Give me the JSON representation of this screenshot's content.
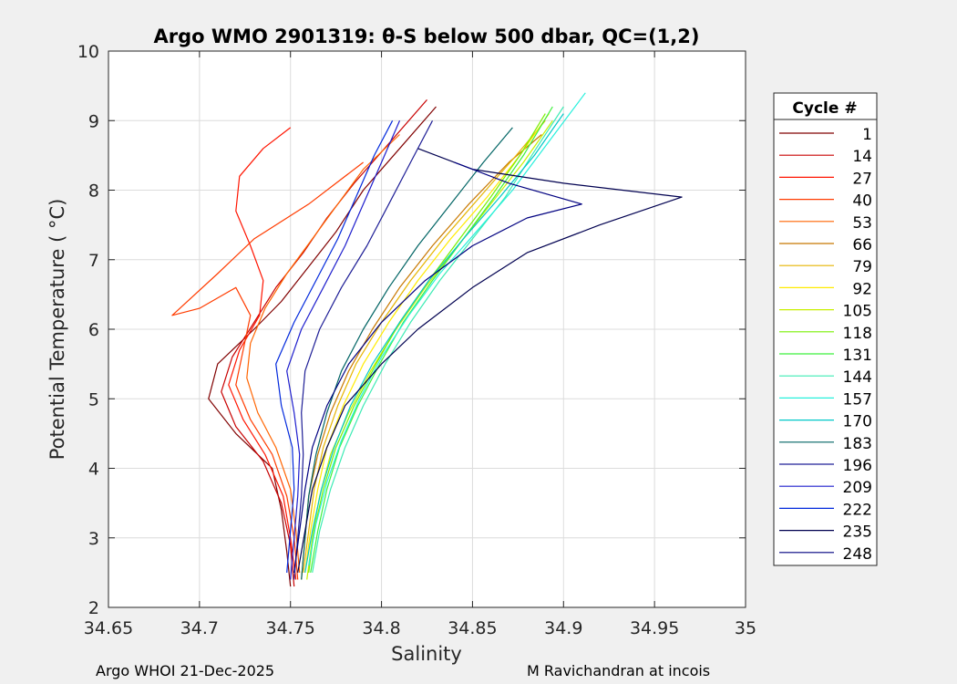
{
  "chart_data": {
    "type": "line",
    "title": "Argo WMO 2901319: θ-S below 500 dbar,  QC=(1,2)",
    "xlabel": "Salinity",
    "ylabel": "Potential Temperature ( °C)",
    "xlim": [
      34.65,
      35
    ],
    "ylim": [
      2,
      10
    ],
    "xticks": [
      "34.65",
      "34.7",
      "34.75",
      "34.8",
      "34.85",
      "34.9",
      "34.95",
      "35"
    ],
    "yticks": [
      "2",
      "3",
      "4",
      "5",
      "6",
      "7",
      "8",
      "9",
      "10"
    ],
    "grid": true,
    "legend": {
      "title": "Cycle #",
      "position": "outside-right",
      "entries": [
        "1",
        "14",
        "27",
        "40",
        "53",
        "66",
        "79",
        "92",
        "105",
        "118",
        "131",
        "144",
        "157",
        "170",
        "183",
        "196",
        "209",
        "222",
        "235",
        "248"
      ],
      "colors": [
        "#800000",
        "#c80000",
        "#ff1400",
        "#ff3c00",
        "#ff6400",
        "#c87800",
        "#e6b400",
        "#ffeb00",
        "#c8f000",
        "#78f000",
        "#3cf03c",
        "#3cebb4",
        "#28f0dc",
        "#00c8c8",
        "#006464",
        "#1e1e96",
        "#1e1ecd",
        "#0028dc",
        "#000050",
        "#000080"
      ]
    },
    "series": [
      {
        "name": "1",
        "color": "#800000",
        "points": [
          [
            34.75,
            2.3
          ],
          [
            34.748,
            2.8
          ],
          [
            34.745,
            3.4
          ],
          [
            34.74,
            4.0
          ],
          [
            34.72,
            4.5
          ],
          [
            34.705,
            5.0
          ],
          [
            34.71,
            5.5
          ],
          [
            34.73,
            6.0
          ],
          [
            34.745,
            6.4
          ],
          [
            34.76,
            6.9
          ],
          [
            34.775,
            7.4
          ],
          [
            34.79,
            8.0
          ],
          [
            34.81,
            8.6
          ],
          [
            34.83,
            9.2
          ]
        ]
      },
      {
        "name": "14",
        "color": "#c80000",
        "points": [
          [
            34.752,
            2.3
          ],
          [
            34.75,
            2.9
          ],
          [
            34.745,
            3.5
          ],
          [
            34.735,
            4.1
          ],
          [
            34.72,
            4.6
          ],
          [
            34.712,
            5.1
          ],
          [
            34.718,
            5.6
          ],
          [
            34.73,
            6.1
          ],
          [
            34.742,
            6.6
          ],
          [
            34.757,
            7.1
          ],
          [
            34.77,
            7.6
          ],
          [
            34.785,
            8.1
          ],
          [
            34.805,
            8.7
          ],
          [
            34.825,
            9.3
          ]
        ]
      },
      {
        "name": "27",
        "color": "#ff1400",
        "points": [
          [
            34.753,
            2.4
          ],
          [
            34.75,
            3.0
          ],
          [
            34.746,
            3.6
          ],
          [
            34.736,
            4.2
          ],
          [
            34.724,
            4.7
          ],
          [
            34.716,
            5.2
          ],
          [
            34.722,
            5.7
          ],
          [
            34.733,
            6.2
          ],
          [
            34.735,
            6.7
          ],
          [
            34.728,
            7.2
          ],
          [
            34.72,
            7.7
          ],
          [
            34.722,
            8.2
          ],
          [
            34.735,
            8.6
          ],
          [
            34.75,
            8.9
          ]
        ]
      },
      {
        "name": "40",
        "color": "#ff3c00",
        "points": [
          [
            34.754,
            2.4
          ],
          [
            34.752,
            3.0
          ],
          [
            34.748,
            3.6
          ],
          [
            34.74,
            4.2
          ],
          [
            34.728,
            4.7
          ],
          [
            34.72,
            5.2
          ],
          [
            34.724,
            5.7
          ],
          [
            34.728,
            6.2
          ],
          [
            34.72,
            6.6
          ],
          [
            34.7,
            6.3
          ],
          [
            34.685,
            6.2
          ],
          [
            34.71,
            6.8
          ],
          [
            34.73,
            7.3
          ],
          [
            34.76,
            7.8
          ],
          [
            34.79,
            8.4
          ]
        ]
      },
      {
        "name": "53",
        "color": "#ff6400",
        "points": [
          [
            34.755,
            2.5
          ],
          [
            34.753,
            3.1
          ],
          [
            34.75,
            3.7
          ],
          [
            34.742,
            4.3
          ],
          [
            34.732,
            4.8
          ],
          [
            34.726,
            5.3
          ],
          [
            34.728,
            5.8
          ],
          [
            34.736,
            6.3
          ],
          [
            34.748,
            6.8
          ],
          [
            34.762,
            7.3
          ],
          [
            34.776,
            7.8
          ],
          [
            34.79,
            8.3
          ],
          [
            34.81,
            8.8
          ]
        ]
      },
      {
        "name": "66",
        "color": "#c87800",
        "points": [
          [
            34.756,
            2.4
          ],
          [
            34.758,
            3.0
          ],
          [
            34.76,
            3.6
          ],
          [
            34.765,
            4.2
          ],
          [
            34.772,
            4.8
          ],
          [
            34.782,
            5.4
          ],
          [
            34.795,
            6.0
          ],
          [
            34.81,
            6.6
          ],
          [
            34.828,
            7.2
          ],
          [
            34.848,
            7.8
          ],
          [
            34.87,
            8.4
          ],
          [
            34.888,
            8.8
          ]
        ]
      },
      {
        "name": "79",
        "color": "#e6b400",
        "points": [
          [
            34.757,
            2.5
          ],
          [
            34.76,
            3.1
          ],
          [
            34.763,
            3.7
          ],
          [
            34.768,
            4.3
          ],
          [
            34.776,
            4.9
          ],
          [
            34.786,
            5.5
          ],
          [
            34.8,
            6.1
          ],
          [
            34.816,
            6.7
          ],
          [
            34.834,
            7.3
          ],
          [
            34.854,
            7.9
          ],
          [
            34.874,
            8.5
          ],
          [
            34.89,
            9.0
          ]
        ]
      },
      {
        "name": "92",
        "color": "#ffeb00",
        "points": [
          [
            34.758,
            2.5
          ],
          [
            34.761,
            3.1
          ],
          [
            34.765,
            3.7
          ],
          [
            34.77,
            4.3
          ],
          [
            34.779,
            4.9
          ],
          [
            34.79,
            5.5
          ],
          [
            34.804,
            6.1
          ],
          [
            34.82,
            6.7
          ],
          [
            34.838,
            7.3
          ],
          [
            34.858,
            7.9
          ],
          [
            34.876,
            8.5
          ],
          [
            34.892,
            9.1
          ]
        ]
      },
      {
        "name": "105",
        "color": "#c8f000",
        "points": [
          [
            34.759,
            2.4
          ],
          [
            34.762,
            3.0
          ],
          [
            34.766,
            3.6
          ],
          [
            34.772,
            4.2
          ],
          [
            34.782,
            4.8
          ],
          [
            34.794,
            5.4
          ],
          [
            34.808,
            6.0
          ],
          [
            34.824,
            6.6
          ],
          [
            34.842,
            7.2
          ],
          [
            34.86,
            7.8
          ],
          [
            34.878,
            8.4
          ],
          [
            34.894,
            9.0
          ]
        ]
      },
      {
        "name": "118",
        "color": "#78f000",
        "points": [
          [
            34.76,
            2.5
          ],
          [
            34.763,
            3.1
          ],
          [
            34.768,
            3.7
          ],
          [
            34.775,
            4.3
          ],
          [
            34.785,
            4.9
          ],
          [
            34.797,
            5.5
          ],
          [
            34.81,
            6.1
          ],
          [
            34.826,
            6.7
          ],
          [
            34.843,
            7.3
          ],
          [
            34.86,
            7.9
          ],
          [
            34.876,
            8.5
          ],
          [
            34.89,
            9.1
          ]
        ]
      },
      {
        "name": "131",
        "color": "#3cf03c",
        "points": [
          [
            34.761,
            2.5
          ],
          [
            34.765,
            3.1
          ],
          [
            34.77,
            3.7
          ],
          [
            34.777,
            4.3
          ],
          [
            34.787,
            4.9
          ],
          [
            34.799,
            5.5
          ],
          [
            34.812,
            6.1
          ],
          [
            34.828,
            6.7
          ],
          [
            34.845,
            7.3
          ],
          [
            34.862,
            7.9
          ],
          [
            34.878,
            8.5
          ],
          [
            34.894,
            9.2
          ]
        ]
      },
      {
        "name": "144",
        "color": "#3cebb4",
        "points": [
          [
            34.762,
            2.5
          ],
          [
            34.766,
            3.1
          ],
          [
            34.772,
            3.7
          ],
          [
            34.78,
            4.3
          ],
          [
            34.79,
            4.9
          ],
          [
            34.802,
            5.5
          ],
          [
            34.816,
            6.1
          ],
          [
            34.832,
            6.7
          ],
          [
            34.85,
            7.3
          ],
          [
            34.868,
            7.9
          ],
          [
            34.885,
            8.6
          ],
          [
            34.9,
            9.2
          ]
        ]
      },
      {
        "name": "157",
        "color": "#28f0dc",
        "points": [
          [
            34.76,
            2.6
          ],
          [
            34.764,
            3.2
          ],
          [
            34.77,
            3.8
          ],
          [
            34.778,
            4.4
          ],
          [
            34.788,
            5.0
          ],
          [
            34.8,
            5.6
          ],
          [
            34.815,
            6.2
          ],
          [
            34.832,
            6.8
          ],
          [
            34.852,
            7.4
          ],
          [
            34.872,
            8.0
          ],
          [
            34.892,
            8.7
          ],
          [
            34.912,
            9.4
          ]
        ]
      },
      {
        "name": "170",
        "color": "#00c8c8",
        "points": [
          [
            34.758,
            2.5
          ],
          [
            34.762,
            3.1
          ],
          [
            34.767,
            3.7
          ],
          [
            34.774,
            4.3
          ],
          [
            34.783,
            4.9
          ],
          [
            34.795,
            5.5
          ],
          [
            34.81,
            6.1
          ],
          [
            34.826,
            6.7
          ],
          [
            34.845,
            7.3
          ],
          [
            34.865,
            7.9
          ],
          [
            34.884,
            8.5
          ],
          [
            34.9,
            9.1
          ]
        ]
      },
      {
        "name": "183",
        "color": "#006464",
        "points": [
          [
            34.756,
            2.4
          ],
          [
            34.758,
            3.0
          ],
          [
            34.76,
            3.6
          ],
          [
            34.764,
            4.2
          ],
          [
            34.77,
            4.8
          ],
          [
            34.778,
            5.4
          ],
          [
            34.79,
            6.0
          ],
          [
            34.804,
            6.6
          ],
          [
            34.82,
            7.2
          ],
          [
            34.838,
            7.8
          ],
          [
            34.856,
            8.4
          ],
          [
            34.872,
            8.9
          ]
        ]
      },
      {
        "name": "196",
        "color": "#1e1e96",
        "points": [
          [
            34.752,
            2.4
          ],
          [
            34.754,
            3.0
          ],
          [
            34.756,
            3.6
          ],
          [
            34.757,
            4.2
          ],
          [
            34.756,
            4.8
          ],
          [
            34.758,
            5.4
          ],
          [
            34.766,
            6.0
          ],
          [
            34.778,
            6.6
          ],
          [
            34.792,
            7.2
          ],
          [
            34.804,
            7.8
          ],
          [
            34.816,
            8.4
          ],
          [
            34.828,
            9.0
          ]
        ]
      },
      {
        "name": "209",
        "color": "#1e1ecd",
        "points": [
          [
            34.75,
            2.4
          ],
          [
            34.752,
            3.0
          ],
          [
            34.754,
            3.6
          ],
          [
            34.755,
            4.2
          ],
          [
            34.752,
            4.8
          ],
          [
            34.748,
            5.4
          ],
          [
            34.756,
            6.0
          ],
          [
            34.768,
            6.6
          ],
          [
            34.78,
            7.2
          ],
          [
            34.79,
            7.8
          ],
          [
            34.8,
            8.4
          ],
          [
            34.81,
            9.0
          ]
        ]
      },
      {
        "name": "222",
        "color": "#0028dc",
        "points": [
          [
            34.748,
            2.5
          ],
          [
            34.75,
            3.1
          ],
          [
            34.752,
            3.7
          ],
          [
            34.751,
            4.3
          ],
          [
            34.745,
            4.9
          ],
          [
            34.742,
            5.5
          ],
          [
            34.752,
            6.1
          ],
          [
            34.764,
            6.7
          ],
          [
            34.776,
            7.3
          ],
          [
            34.786,
            7.9
          ],
          [
            34.796,
            8.5
          ],
          [
            34.806,
            9.0
          ]
        ]
      },
      {
        "name": "235",
        "color": "#000050",
        "points": [
          [
            34.754,
            2.5
          ],
          [
            34.758,
            3.1
          ],
          [
            34.762,
            3.7
          ],
          [
            34.77,
            4.3
          ],
          [
            34.78,
            4.9
          ],
          [
            34.8,
            5.5
          ],
          [
            34.82,
            6.0
          ],
          [
            34.85,
            6.6
          ],
          [
            34.88,
            7.1
          ],
          [
            34.92,
            7.5
          ],
          [
            34.965,
            7.9
          ],
          [
            34.9,
            8.1
          ],
          [
            34.85,
            8.3
          ],
          [
            34.82,
            8.6
          ]
        ]
      },
      {
        "name": "248",
        "color": "#000080",
        "points": [
          [
            34.752,
            2.5
          ],
          [
            34.755,
            3.1
          ],
          [
            34.758,
            3.7
          ],
          [
            34.762,
            4.3
          ],
          [
            34.77,
            4.9
          ],
          [
            34.782,
            5.5
          ],
          [
            34.8,
            6.1
          ],
          [
            34.824,
            6.7
          ],
          [
            34.85,
            7.2
          ],
          [
            34.88,
            7.6
          ],
          [
            34.91,
            7.8
          ],
          [
            34.87,
            8.1
          ],
          [
            34.84,
            8.4
          ]
        ]
      }
    ]
  },
  "footer": {
    "left": "Argo WHOI 21-Dec-2025",
    "right": "M Ravichandran at incois"
  }
}
